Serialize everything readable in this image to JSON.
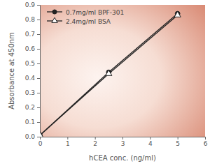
{
  "chart_data": {
    "type": "line",
    "x_label": "hCEA conc. (ng/ml)",
    "y_label": "Absorbance at 450nm",
    "x": [
      0,
      2.5,
      5
    ],
    "series": [
      {
        "name": "0.7mg/ml BPF-301",
        "color": "#222222",
        "marker": "circle",
        "line_style": "solid",
        "values": [
          0.01,
          0.44,
          0.84
        ]
      },
      {
        "name": "2.4mg/ml BSA",
        "color": "#222222",
        "marker": "triangle-open",
        "line_style": "solid",
        "values": [
          0.01,
          0.43,
          0.83
        ]
      }
    ],
    "xlim": [
      0,
      6
    ],
    "xticks": [
      0,
      1,
      2,
      3,
      4,
      5,
      6
    ],
    "ylim": [
      0,
      0.9
    ],
    "yticks": [
      {
        "value": 0,
        "label": "0.0"
      },
      0.1,
      0.2,
      0.3,
      0.4,
      0.5,
      0.6,
      0.7,
      0.8,
      0.9
    ],
    "grid": false,
    "legend": "top-left"
  }
}
